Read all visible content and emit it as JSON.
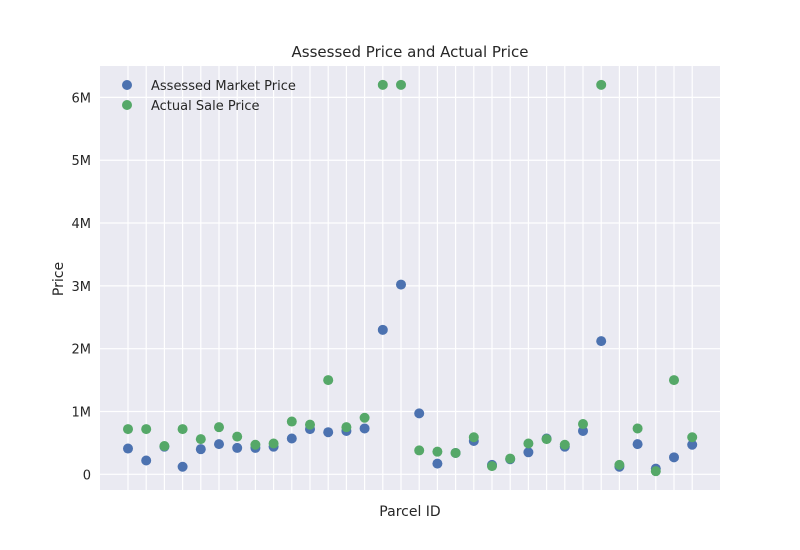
{
  "chart_data": {
    "type": "scatter",
    "title": "Assessed Price and Actual Price",
    "xlabel": "Parcel ID",
    "ylabel": "Price",
    "ylim": [
      -250000,
      6500000
    ],
    "yticks": [
      {
        "value": 0,
        "label": "0"
      },
      {
        "value": 1000000,
        "label": "1M"
      },
      {
        "value": 2000000,
        "label": "2M"
      },
      {
        "value": 3000000,
        "label": "3M"
      },
      {
        "value": 4000000,
        "label": "4M"
      },
      {
        "value": 5000000,
        "label": "5M"
      },
      {
        "value": 6000000,
        "label": "6M"
      }
    ],
    "n_points": 32,
    "grid": true,
    "legend_position": "top-left",
    "series": [
      {
        "name": "Assessed Market Price",
        "color": "#4c72b0",
        "values": [
          410000,
          220000,
          440000,
          120000,
          400000,
          480000,
          420000,
          420000,
          440000,
          570000,
          720000,
          670000,
          690000,
          730000,
          2300000,
          3020000,
          970000,
          170000,
          340000,
          530000,
          150000,
          240000,
          350000,
          570000,
          440000,
          690000,
          2120000,
          120000,
          480000,
          90000,
          270000,
          470000
        ]
      },
      {
        "name": "Actual Sale Price",
        "color": "#55a868",
        "values": [
          720000,
          720000,
          450000,
          720000,
          560000,
          750000,
          600000,
          470000,
          490000,
          840000,
          790000,
          1500000,
          750000,
          900000,
          6200000,
          6200000,
          380000,
          360000,
          340000,
          590000,
          130000,
          250000,
          490000,
          560000,
          470000,
          800000,
          6200000,
          150000,
          730000,
          50000,
          1500000,
          590000
        ]
      }
    ]
  }
}
